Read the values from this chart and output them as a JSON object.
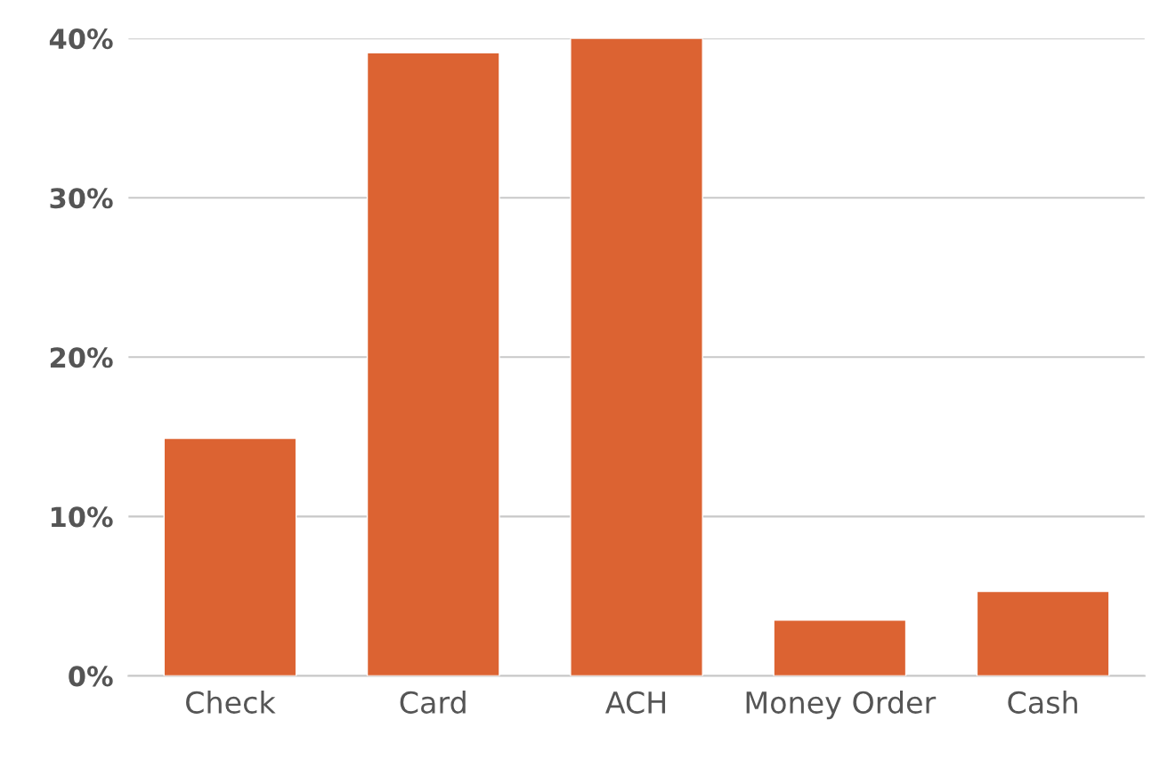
{
  "chart_data": {
    "type": "bar",
    "categories": [
      "Check",
      "Card",
      "ACH",
      "Money Order",
      "Cash"
    ],
    "values": [
      14.9,
      39.1,
      40,
      3.5,
      5.3
    ],
    "color": "#dc6332",
    "ylim": [
      0,
      40
    ],
    "yticks": [
      {
        "value": 0,
        "label": "0%"
      },
      {
        "value": 10,
        "label": "10%"
      },
      {
        "value": 20,
        "label": "20%"
      },
      {
        "value": 30,
        "label": "30%"
      },
      {
        "value": 40,
        "label": "40%"
      }
    ],
    "grid": "y"
  }
}
